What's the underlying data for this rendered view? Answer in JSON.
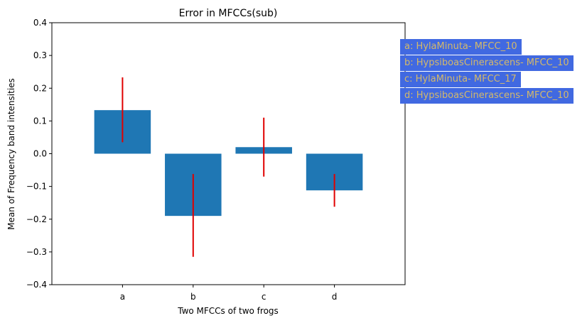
{
  "chart_data": {
    "type": "bar",
    "title": "Error in MFCCs(sub)",
    "xlabel": "Two MFCCs of two frogs",
    "ylabel": "Mean of Frequency band intensities",
    "categories": [
      "a",
      "b",
      "c",
      "d"
    ],
    "values": [
      0.133,
      -0.19,
      0.02,
      -0.112
    ],
    "error_low": [
      0.035,
      -0.315,
      -0.07,
      -0.162
    ],
    "error_high": [
      0.233,
      -0.062,
      0.11,
      -0.062
    ],
    "ylim": [
      -0.4,
      0.4
    ],
    "yticks": [
      "−0.4",
      "−0.3",
      "−0.2",
      "−0.1",
      "0.0",
      "0.1",
      "0.2",
      "0.3",
      "0.4"
    ],
    "ytick_values": [
      -0.4,
      -0.3,
      -0.2,
      -0.1,
      0.0,
      0.1,
      0.2,
      0.3,
      0.4
    ],
    "grid": false,
    "bar_color": "#1f77b4",
    "error_color": "#e00000",
    "legend_placement": "outside-right",
    "legend": [
      "a: HylaMinuta- MFCC_10",
      "b: HypsiboasCinerascens- MFCC_10",
      "c: HylaMinuta- MFCC_17",
      "d: HypsiboasCinerascens- MFCC_10"
    ],
    "legend_bg": "#4169E1",
    "legend_text_color": "#d4b96a"
  }
}
